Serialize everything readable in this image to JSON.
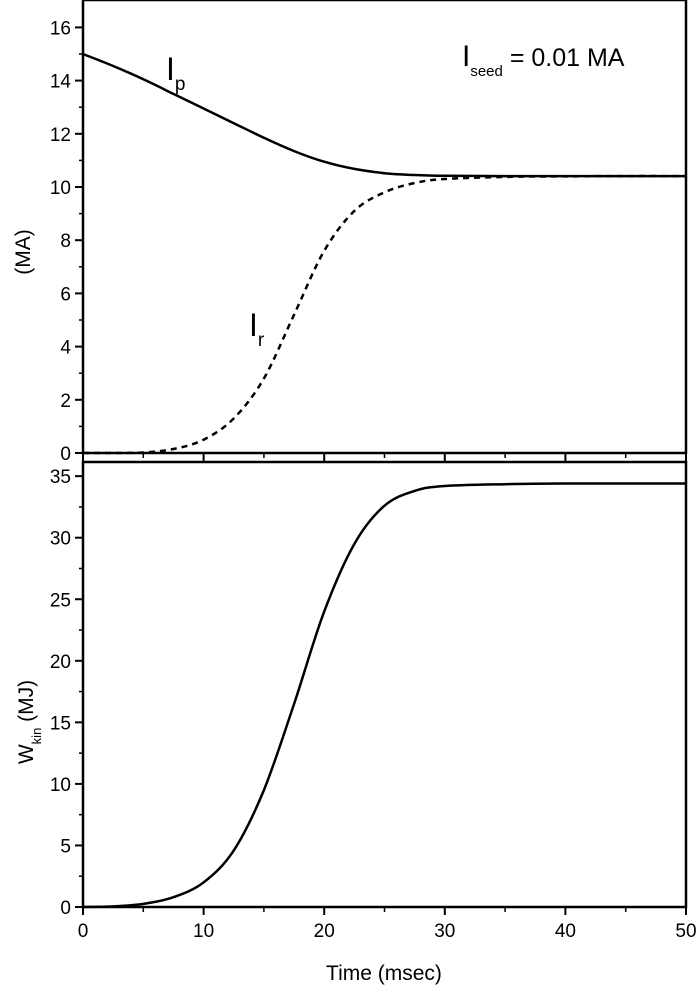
{
  "chart_data": [
    {
      "type": "line",
      "panel": "top",
      "title": "",
      "xlabel": "",
      "ylabel": "(MA)",
      "xlim": [
        0,
        50
      ],
      "ylim": [
        0,
        17
      ],
      "xticks": [
        0,
        10,
        20,
        30,
        40,
        50
      ],
      "yticks": [
        0,
        2,
        4,
        6,
        8,
        10,
        12,
        14,
        16
      ],
      "grid": false,
      "annotation": {
        "main": "I",
        "sub": "seed",
        "rest": " = 0.01 MA"
      },
      "series": [
        {
          "name": "I_p",
          "label_main": "I",
          "label_sub": "p",
          "style": "solid",
          "x": [
            0,
            2.5,
            5,
            7.5,
            10,
            12.5,
            15,
            17.5,
            20,
            22.5,
            25,
            27.5,
            30,
            35,
            40,
            45,
            50
          ],
          "y": [
            15.0,
            14.55,
            14.05,
            13.5,
            12.95,
            12.4,
            11.85,
            11.35,
            10.95,
            10.68,
            10.52,
            10.45,
            10.42,
            10.41,
            10.41,
            10.41,
            10.41
          ]
        },
        {
          "name": "I_r",
          "label_main": "I",
          "label_sub": "r",
          "style": "dashed",
          "x": [
            0,
            2.5,
            5,
            7.5,
            10,
            12.5,
            15,
            17.5,
            20,
            22.5,
            25,
            27.5,
            30,
            35,
            40,
            45,
            50
          ],
          "y": [
            0.0,
            0.0,
            0.02,
            0.15,
            0.5,
            1.3,
            2.8,
            5.2,
            7.6,
            9.1,
            9.8,
            10.15,
            10.3,
            10.38,
            10.4,
            10.41,
            10.41
          ]
        }
      ]
    },
    {
      "type": "line",
      "panel": "bottom",
      "title": "",
      "xlabel": "Time (msec)",
      "ylabel_main": "W",
      "ylabel_sub": "kin",
      "ylabel_rest": " (MJ)",
      "xlim": [
        0,
        50
      ],
      "ylim": [
        0,
        36
      ],
      "xticks": [
        0,
        10,
        20,
        30,
        40,
        50
      ],
      "yticks": [
        0,
        5,
        10,
        15,
        20,
        25,
        30,
        35
      ],
      "grid": false,
      "series": [
        {
          "name": "W_kin",
          "style": "solid",
          "x": [
            0,
            2.5,
            5,
            7.5,
            10,
            12.5,
            15,
            17.5,
            20,
            22.5,
            25,
            27.5,
            30,
            35,
            40,
            45,
            50
          ],
          "y": [
            0.0,
            0.05,
            0.25,
            0.8,
            2.0,
            4.6,
            9.5,
            16.5,
            24.0,
            29.5,
            32.6,
            33.8,
            34.2,
            34.35,
            34.4,
            34.4,
            34.4
          ]
        }
      ]
    }
  ]
}
